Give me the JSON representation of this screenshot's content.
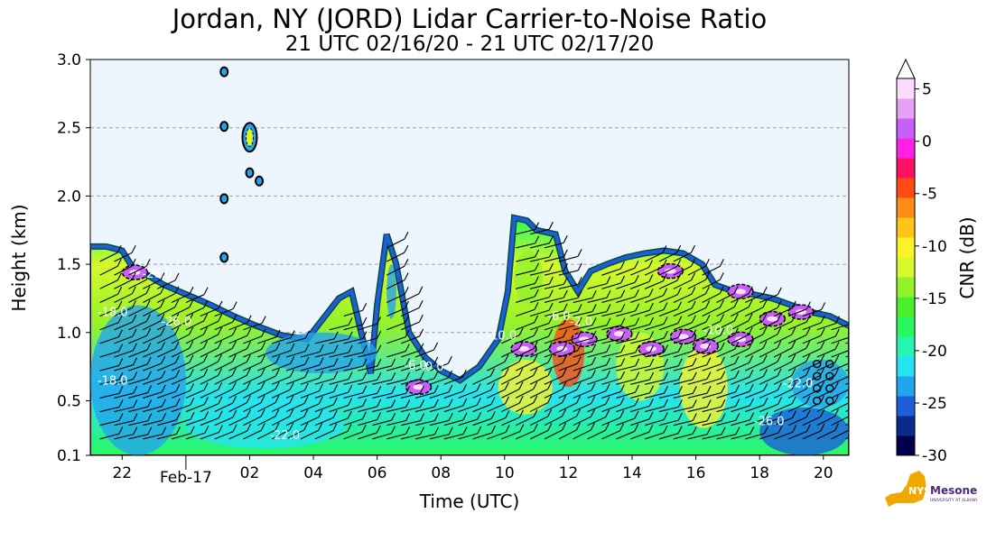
{
  "chart_data": {
    "type": "heatmap",
    "title": "Jordan, NY (JORD) Lidar Carrier-to-Noise Ratio",
    "subtitle": "21 UTC 02/16/20 - 21 UTC 02/17/20",
    "xlabel": "Time (UTC)",
    "ylabel": "Height (km)",
    "x_ticks": [
      {
        "label": "22",
        "hour": 1
      },
      {
        "label": "Feb-17",
        "hour": 3,
        "secondary": true
      },
      {
        "label": "02",
        "hour": 5
      },
      {
        "label": "04",
        "hour": 7
      },
      {
        "label": "06",
        "hour": 9
      },
      {
        "label": "08",
        "hour": 11
      },
      {
        "label": "10",
        "hour": 13
      },
      {
        "label": "12",
        "hour": 15
      },
      {
        "label": "14",
        "hour": 17
      },
      {
        "label": "16",
        "hour": 19
      },
      {
        "label": "18",
        "hour": 21
      },
      {
        "label": "20",
        "hour": 23
      }
    ],
    "xlim_hours": [
      0,
      23.8
    ],
    "y_ticks": [
      0.1,
      0.5,
      1.0,
      1.5,
      2.0,
      2.5,
      3.0
    ],
    "y_tick_labels": [
      "0.1",
      "0.5",
      "1.0",
      "1.5",
      "2.0",
      "2.5",
      "3.0"
    ],
    "ylim": [
      0.1,
      3.0
    ],
    "grid": "horizontal dashed",
    "colorbar": {
      "label": "CNR (dB)",
      "ticks": [
        5,
        0,
        -5,
        -10,
        -15,
        -20,
        -25,
        -30
      ],
      "tick_labels": [
        "5",
        "0",
        "-5",
        "-10",
        "-15",
        "-20",
        "-25",
        "-30"
      ],
      "range": [
        -30,
        6
      ],
      "extend": "max"
    },
    "boundary_layer_top_km": [
      {
        "hour": 0,
        "km": 1.63
      },
      {
        "hour": 0.5,
        "km": 1.63
      },
      {
        "hour": 1.0,
        "km": 1.6
      },
      {
        "hour": 1.4,
        "km": 1.45
      },
      {
        "hour": 1.8,
        "km": 1.42
      },
      {
        "hour": 2.3,
        "km": 1.35
      },
      {
        "hour": 2.8,
        "km": 1.3
      },
      {
        "hour": 3.3,
        "km": 1.25
      },
      {
        "hour": 3.8,
        "km": 1.2
      },
      {
        "hour": 4.5,
        "km": 1.12
      },
      {
        "hour": 5.2,
        "km": 1.05
      },
      {
        "hour": 6.0,
        "km": 0.98
      },
      {
        "hour": 6.8,
        "km": 0.95
      },
      {
        "hour": 7.3,
        "km": 1.1
      },
      {
        "hour": 7.8,
        "km": 1.25
      },
      {
        "hour": 8.2,
        "km": 1.3
      },
      {
        "hour": 8.5,
        "km": 1.0
      },
      {
        "hour": 8.8,
        "km": 0.7
      },
      {
        "hour": 9.0,
        "km": 1.2
      },
      {
        "hour": 9.3,
        "km": 1.72
      },
      {
        "hour": 9.6,
        "km": 1.5
      },
      {
        "hour": 10.0,
        "km": 1.0
      },
      {
        "hour": 10.5,
        "km": 0.82
      },
      {
        "hour": 11.0,
        "km": 0.72
      },
      {
        "hour": 11.6,
        "km": 0.65
      },
      {
        "hour": 12.2,
        "km": 0.75
      },
      {
        "hour": 12.8,
        "km": 0.95
      },
      {
        "hour": 13.1,
        "km": 1.3
      },
      {
        "hour": 13.3,
        "km": 1.84
      },
      {
        "hour": 13.7,
        "km": 1.82
      },
      {
        "hour": 14.0,
        "km": 1.75
      },
      {
        "hour": 14.6,
        "km": 1.72
      },
      {
        "hour": 14.9,
        "km": 1.45
      },
      {
        "hour": 15.3,
        "km": 1.3
      },
      {
        "hour": 15.7,
        "km": 1.45
      },
      {
        "hour": 16.2,
        "km": 1.5
      },
      {
        "hour": 16.8,
        "km": 1.55
      },
      {
        "hour": 17.4,
        "km": 1.58
      },
      {
        "hour": 18.0,
        "km": 1.6
      },
      {
        "hour": 18.6,
        "km": 1.58
      },
      {
        "hour": 19.2,
        "km": 1.5
      },
      {
        "hour": 19.6,
        "km": 1.35
      },
      {
        "hour": 20.2,
        "km": 1.3
      },
      {
        "hour": 20.8,
        "km": 1.28
      },
      {
        "hour": 21.4,
        "km": 1.25
      },
      {
        "hour": 22.0,
        "km": 1.2
      },
      {
        "hour": 22.6,
        "km": 1.15
      },
      {
        "hour": 23.2,
        "km": 1.12
      },
      {
        "hour": 23.8,
        "km": 1.05
      }
    ],
    "cloud_blobs": [
      {
        "hour": 5.0,
        "km": 2.43
      },
      {
        "hour": 5.0,
        "km": 2.17
      },
      {
        "hour": 5.3,
        "km": 2.11
      },
      {
        "hour": 4.2,
        "km": 1.98
      },
      {
        "hour": 4.2,
        "km": 2.51
      },
      {
        "hour": 4.2,
        "km": 2.91
      },
      {
        "hour": 4.2,
        "km": 1.55
      }
    ],
    "contour_labels": [
      {
        "text": "-18.0",
        "hour": 0.7,
        "km": 1.12
      },
      {
        "text": "-26.0",
        "hour": 2.7,
        "km": 1.05
      },
      {
        "text": "-18.0",
        "hour": 0.7,
        "km": 0.62
      },
      {
        "text": "-26.0",
        "hour": 2.1,
        "km": 1.4
      },
      {
        "text": "-22.0",
        "hour": 6.1,
        "km": 0.22
      },
      {
        "text": "-6.0",
        "hour": 10.2,
        "km": 0.73
      },
      {
        "text": "0.0",
        "hour": 10.8,
        "km": 0.72
      },
      {
        "text": "-10.0",
        "hour": 12.9,
        "km": 0.95
      },
      {
        "text": "-6.0",
        "hour": 14.7,
        "km": 1.09
      },
      {
        "text": "-2.0",
        "hour": 15.4,
        "km": 1.05
      },
      {
        "text": "-10.0",
        "hour": 19.7,
        "km": 0.99
      },
      {
        "text": "-26.0",
        "hour": 21.3,
        "km": 0.32
      },
      {
        "text": "-22.0",
        "hour": 22.2,
        "km": 0.6
      }
    ],
    "colors": {
      "background": "#eef6fd",
      "colormap": [
        "#00004d",
        "#0c2a8c",
        "#1c5fd8",
        "#23a5ee",
        "#24e4f2",
        "#28f4b4",
        "#2af860",
        "#4cf02a",
        "#94f22a",
        "#d6f82c",
        "#fbf22a",
        "#ffc418",
        "#ff8c14",
        "#ff4a14",
        "#ff1060",
        "#ff20e6",
        "#c860f8",
        "#e6a0f6",
        "#fcdcfc"
      ]
    }
  },
  "logo": {
    "text": "NYS Mesonet",
    "subtext": "UNIVERSITY AT ALBANY"
  }
}
